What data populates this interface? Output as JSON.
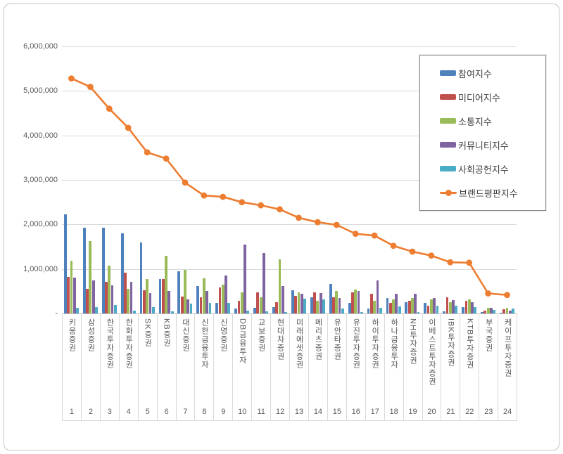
{
  "chart_data": {
    "type": "bar",
    "subtype": "grouped-bars-with-line-overlay",
    "title": "",
    "categories": [
      "키움증권",
      "삼성증권",
      "한국투자증권",
      "한화투자증권",
      "SK증권",
      "KB증권",
      "대신증권",
      "신한금융투자",
      "신영증권",
      "DB금융투자",
      "교보증권",
      "현대차증권",
      "미래에셋증권",
      "메리츠증권",
      "유안타증권",
      "유진투자증권",
      "하이투자증권",
      "하나금융투자",
      "NH투자증권",
      "이베스트투자증권",
      "IBK투자증권",
      "KTB투자증권",
      "부국증권",
      "케이프투자증권"
    ],
    "category_ranks": [
      "1",
      "2",
      "3",
      "4",
      "5",
      "6",
      "7",
      "8",
      "9",
      "10",
      "11",
      "12",
      "13",
      "14",
      "15",
      "16",
      "17",
      "18",
      "19",
      "20",
      "21",
      "22",
      "23",
      "24"
    ],
    "series": [
      {
        "name": "참여지수",
        "type": "bar",
        "color": "#4f81bd",
        "values": [
          2230000,
          1920000,
          1920000,
          1800000,
          1590000,
          780000,
          940000,
          610000,
          240000,
          110000,
          130000,
          150000,
          520000,
          370000,
          670000,
          240000,
          110000,
          340000,
          260000,
          230000,
          50000,
          150000,
          30000,
          20000
        ]
      },
      {
        "name": "미디어지수",
        "type": "bar",
        "color": "#c0504d",
        "values": [
          820000,
          560000,
          710000,
          920000,
          520000,
          770000,
          380000,
          360000,
          580000,
          280000,
          470000,
          260000,
          400000,
          480000,
          360000,
          470000,
          450000,
          230000,
          280000,
          180000,
          370000,
          290000,
          60000,
          90000
        ]
      },
      {
        "name": "소통지수",
        "type": "bar",
        "color": "#9bbb59",
        "values": [
          1190000,
          1620000,
          1070000,
          560000,
          770000,
          1300000,
          980000,
          790000,
          640000,
          480000,
          370000,
          1210000,
          480000,
          290000,
          500000,
          540000,
          280000,
          320000,
          340000,
          320000,
          250000,
          320000,
          120000,
          130000
        ]
      },
      {
        "name": "커뮤니티지수",
        "type": "bar",
        "color": "#8064a2",
        "values": [
          800000,
          750000,
          630000,
          710000,
          460000,
          500000,
          310000,
          510000,
          860000,
          1540000,
          1360000,
          610000,
          450000,
          460000,
          340000,
          500000,
          740000,
          450000,
          440000,
          340000,
          300000,
          260000,
          130000,
          60000
        ]
      },
      {
        "name": "사회공헌지수",
        "type": "bar",
        "color": "#4bacc6",
        "values": [
          120000,
          150000,
          190000,
          60000,
          150000,
          40000,
          220000,
          230000,
          230000,
          60000,
          40000,
          30000,
          330000,
          320000,
          110000,
          30000,
          120000,
          160000,
          30000,
          170000,
          180000,
          150000,
          80000,
          110000
        ]
      },
      {
        "name": "브랜드평판지수",
        "type": "line",
        "color": "#ed7d31",
        "values": [
          5280000,
          5090000,
          4600000,
          4170000,
          3620000,
          3480000,
          2940000,
          2650000,
          2620000,
          2500000,
          2430000,
          2340000,
          2150000,
          2050000,
          1990000,
          1790000,
          1750000,
          1520000,
          1390000,
          1300000,
          1150000,
          1140000,
          450000,
          415000
        ]
      }
    ],
    "y_axis": {
      "min": 0,
      "max": 6000000,
      "tick_interval": 1000000,
      "tick_labels": [
        "-",
        "1,000,000",
        "2,000,000",
        "3,000,000",
        "4,000,000",
        "5,000,000",
        "6,000,000"
      ]
    },
    "legend_position": "top-right",
    "grid": true
  }
}
